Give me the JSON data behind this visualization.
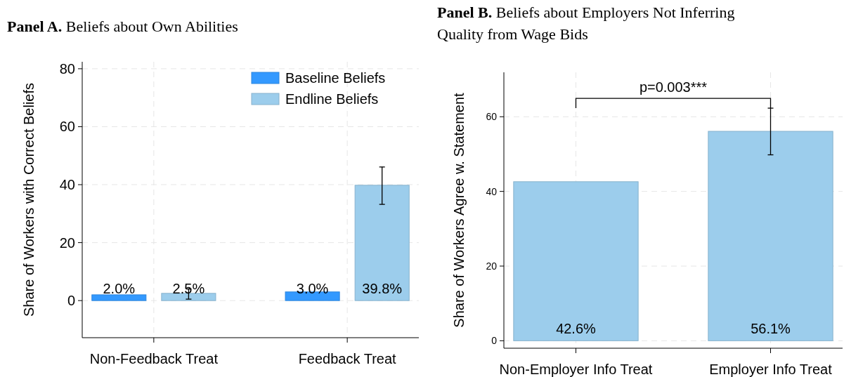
{
  "chart_data": [
    {
      "type": "bar",
      "title": "Panel A. Beliefs about Own Abilities",
      "ylabel": "Share of Workers with Correct Beliefs",
      "categories": [
        "Non-Feedback Treat",
        "Feedback Treat"
      ],
      "series": [
        {
          "name": "Baseline Beliefs",
          "color": "#3399ff",
          "values": [
            2.0,
            3.0
          ],
          "value_labels": [
            "2.0%",
            "3.0%"
          ]
        },
        {
          "name": "Endline Beliefs",
          "color": "#9ccdec",
          "values": [
            2.5,
            39.8
          ],
          "value_labels": [
            "2.5%",
            "39.8%"
          ],
          "errors": [
            [
              0.5,
              4.0
            ],
            [
              33.2,
              46.1
            ]
          ]
        }
      ],
      "ylim": [
        -12.8,
        82.4
      ],
      "yticks": [
        0,
        20,
        40,
        60,
        80
      ],
      "grid": true,
      "legend": "top right"
    },
    {
      "type": "bar",
      "title": "Panel B. Beliefs about Employers Not Inferring Quality from Wage Bids",
      "ylabel": "Share of Workers Agree w. Statement",
      "categories": [
        "Non-Employer Info Treat",
        "Employer Info Treat"
      ],
      "series": [
        {
          "color": "#9ccdec",
          "values": [
            42.6,
            56.1
          ],
          "value_labels": [
            "42.6%",
            "56.1%"
          ],
          "errors": [
            null,
            [
              49.8,
              62.3
            ]
          ]
        }
      ],
      "ylim": [
        -2.0,
        71.9
      ],
      "yticks": [
        0,
        20,
        40,
        60
      ],
      "grid": true,
      "legend": false,
      "annotations": [
        "p=0.003***"
      ]
    }
  ]
}
